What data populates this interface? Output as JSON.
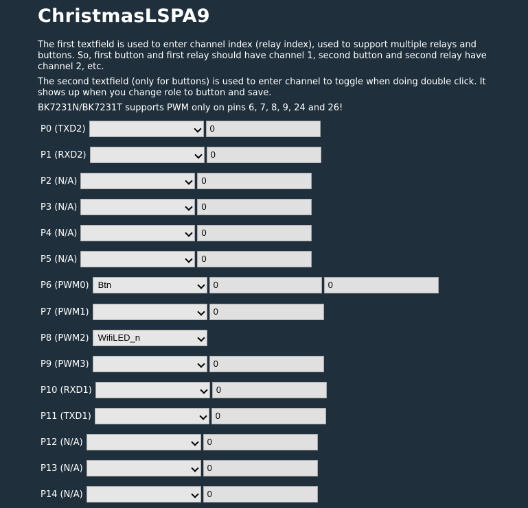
{
  "page": {
    "title": "ChristmasLSPA9",
    "p1": "The first textfield is used to enter channel index (relay index), used to support multiple relays and buttons. So, first button and first relay should have channel 1, second button and second relay have channel 2, etc.",
    "p2": "The second textfield (only for buttons) is used to enter channel to toggle when doing double click. It shows up when you change role to button and save.",
    "p3": "BK7231N/BK7231T supports PWM only on pins 6, 7, 8, 9, 24 and 26!"
  },
  "pins": [
    {
      "label": "P0 (TXD2)",
      "role": "",
      "ch1": "0"
    },
    {
      "label": "P1 (RXD2)",
      "role": "",
      "ch1": "0"
    },
    {
      "label": "P2 (N/A)",
      "role": "",
      "ch1": "0"
    },
    {
      "label": "P3 (N/A)",
      "role": "",
      "ch1": "0"
    },
    {
      "label": "P4 (N/A)",
      "role": "",
      "ch1": "0"
    },
    {
      "label": "P5 (N/A)",
      "role": "",
      "ch1": "0"
    },
    {
      "label": "P6 (PWM0)",
      "role": "Btn",
      "ch1": "0",
      "ch2": "0"
    },
    {
      "label": "P7 (PWM1)",
      "role": "",
      "ch1": "0"
    },
    {
      "label": "P8 (PWM2)",
      "role": "WifiLED_n"
    },
    {
      "label": "P9 (PWM3)",
      "role": "",
      "ch1": "0"
    },
    {
      "label": "P10 (RXD1)",
      "role": "",
      "ch1": "0"
    },
    {
      "label": "P11 (TXD1)",
      "role": "",
      "ch1": "0"
    },
    {
      "label": "P12 (N/A)",
      "role": "",
      "ch1": "0"
    },
    {
      "label": "P13 (N/A)",
      "role": "",
      "ch1": "0"
    },
    {
      "label": "P14 (N/A)",
      "role": "",
      "ch1": "0"
    }
  ],
  "icons": {
    "select_arrow": "chevron-down-icon"
  }
}
